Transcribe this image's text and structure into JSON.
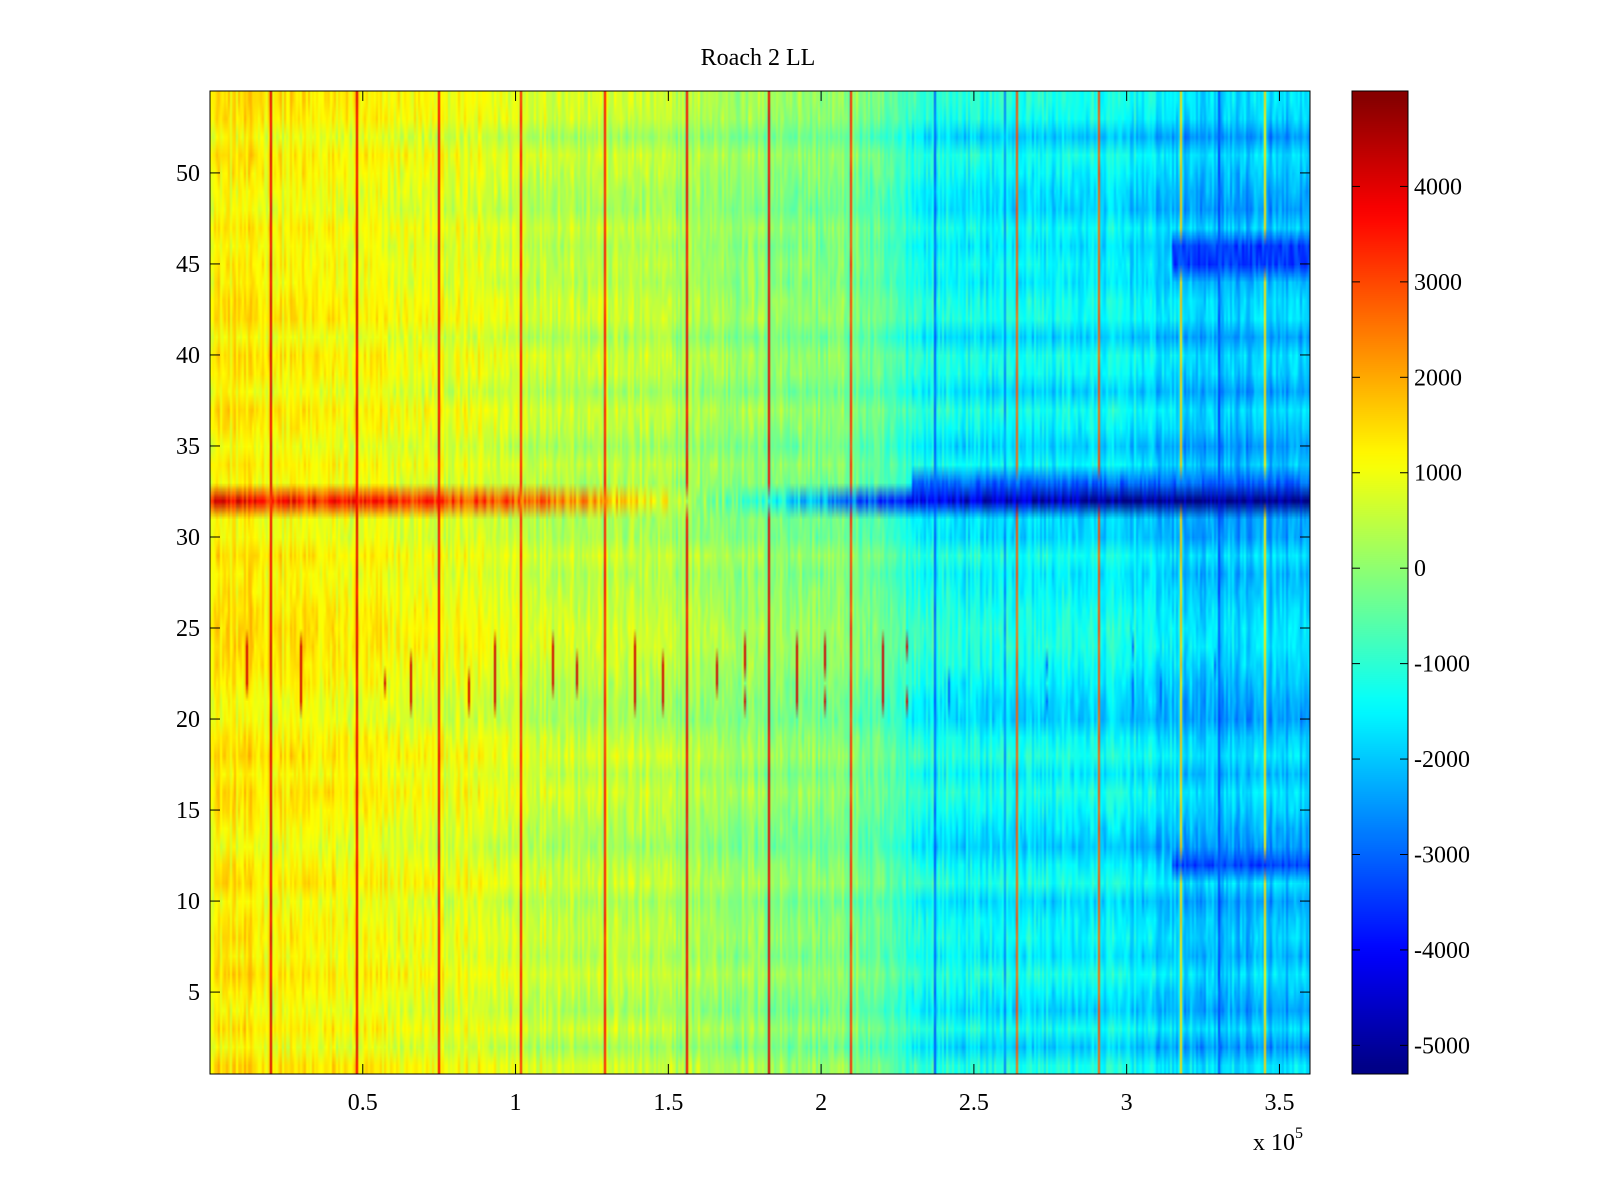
{
  "chart_data": {
    "type": "heatmap",
    "title": "Roach 2 LL",
    "xlabel": "",
    "ylabel": "",
    "x_multiplier_label": "x 10",
    "x_multiplier_exponent": "5",
    "xlim": [
      0,
      3.6
    ],
    "ylim": [
      0.5,
      54.5
    ],
    "x_ticks": [
      0.5,
      1,
      1.5,
      2,
      2.5,
      3,
      3.5
    ],
    "x_tick_labels": [
      "0.5",
      "1",
      "1.5",
      "2",
      "2.5",
      "3",
      "3.5"
    ],
    "y_ticks": [
      5,
      10,
      15,
      20,
      25,
      30,
      35,
      40,
      45,
      50
    ],
    "y_tick_labels": [
      "5",
      "10",
      "15",
      "20",
      "25",
      "30",
      "35",
      "40",
      "45",
      "50"
    ],
    "rows": 54,
    "colormap": "jet",
    "clim": [
      -5300,
      5000
    ],
    "colorbar_ticks": [
      4000,
      3000,
      2000,
      1000,
      0,
      -1000,
      -2000,
      -3000,
      -4000,
      -5000
    ],
    "colorbar_tick_labels": [
      "4000",
      "3000",
      "2000",
      "1000",
      "0",
      "-1000",
      "-2000",
      "-3000",
      "-4000",
      "-5000"
    ],
    "baseline_profile": {
      "x": [
        0,
        0.5,
        1.0,
        1.5,
        1.8,
        2.1,
        2.35,
        2.5,
        3.0,
        3.2,
        3.6
      ],
      "value": [
        1300,
        1000,
        700,
        300,
        0,
        -200,
        -1300,
        -1500,
        -1600,
        -2100,
        -2200
      ]
    },
    "highlight_row": {
      "row": 32,
      "x": [
        0,
        0.4,
        1.0,
        1.4,
        1.8,
        2.2,
        2.5,
        3.0,
        3.6
      ],
      "value": [
        3800,
        3500,
        2900,
        1500,
        -1000,
        -3500,
        -4500,
        -5100,
        -5300
      ]
    },
    "hot_columns": {
      "x": [
        0.2,
        0.48,
        0.75,
        1.02,
        1.29,
        1.56,
        1.83,
        2.1,
        2.64,
        2.91,
        3.18,
        3.45
      ],
      "value": [
        4000,
        4000,
        3800,
        3500,
        3500,
        3800,
        4000,
        3200,
        2800,
        2800,
        1600,
        1400
      ]
    },
    "cool_columns": {
      "x": [
        2.37,
        2.6,
        3.3
      ],
      "value": [
        -3000,
        -2500,
        -3200
      ]
    },
    "dark_spike_columns": {
      "x": [
        0.12,
        0.3,
        0.57,
        0.66,
        0.85,
        0.93,
        1.12,
        1.2,
        1.39,
        1.48,
        1.66,
        1.75,
        1.92,
        2.01,
        2.2,
        2.28,
        2.42,
        2.74,
        3.02,
        3.11,
        3.29
      ],
      "rows": [
        21,
        22,
        23,
        24
      ],
      "value": [
        4200,
        4200,
        4200,
        4200,
        4200,
        4200,
        4200,
        4200,
        4200,
        4200,
        4200,
        4200,
        4200,
        4200,
        4200,
        4200,
        -3000,
        -3000,
        -3000,
        -3000,
        -3000
      ]
    },
    "dark_row_bands": [
      {
        "rows": [
          12,
          12
        ],
        "x_from": 3.15,
        "value": -3400
      },
      {
        "rows": [
          45,
          46
        ],
        "x_from": 3.15,
        "value": -3400
      },
      {
        "rows": [
          33,
          33
        ],
        "x_from": 2.3,
        "value": -3000
      }
    ]
  }
}
